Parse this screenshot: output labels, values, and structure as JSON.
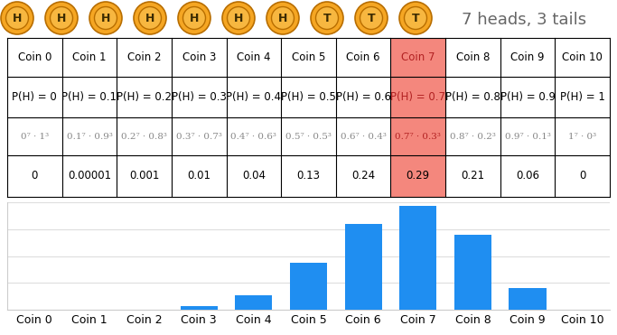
{
  "coins": [
    "H",
    "H",
    "H",
    "H",
    "H",
    "H",
    "H",
    "T",
    "T",
    "T"
  ],
  "summary": "7 heads, 3 tails",
  "table": {
    "rows": [
      [
        "Coin 0",
        "Coin 1",
        "Coin 2",
        "Coin 3",
        "Coin 4",
        "Coin 5",
        "Coin 6",
        "Coin 7",
        "Coin 8",
        "Coin 9",
        "Coin 10"
      ],
      [
        "P(H) = 0",
        "P(H) = 0.1",
        "P(H) = 0.2",
        "P(H) = 0.3",
        "P(H) = 0.4",
        "P(H) = 0.5",
        "P(H) = 0.6",
        "P(H) = 0.7",
        "P(H) = 0.8",
        "P(H) = 0.9",
        "P(H) = 1"
      ],
      [
        "0⁷ · 1³",
        "0.1⁷ · 0.9³",
        "0.2⁷ · 0.8³",
        "0.3⁷ · 0.7³",
        "0.4⁷ · 0.6³",
        "0.5⁷ · 0.5³",
        "0.6⁷ · 0.4³",
        "0.7⁷ · 0.3³",
        "0.8⁷ · 0.2³",
        "0.9⁷ · 0.1³",
        "1⁷ · 0³"
      ],
      [
        "0",
        "0.00001",
        "0.001",
        "0.01",
        "0.04",
        "0.13",
        "0.24",
        "0.29",
        "0.21",
        "0.06",
        "0"
      ]
    ],
    "highlight": "Coin 7",
    "highlight_color": "#f4877d"
  },
  "chart_data": {
    "type": "bar",
    "categories": [
      "Coin 0",
      "Coin 1",
      "Coin 2",
      "Coin 3",
      "Coin 4",
      "Coin 5",
      "Coin 6",
      "Coin 7",
      "Coin 8",
      "Coin 9",
      "Coin 10"
    ],
    "values": [
      0,
      1e-05,
      0.001,
      0.01,
      0.04,
      0.13,
      0.24,
      0.29,
      0.21,
      0.06,
      0
    ],
    "color": "#1f8ef1",
    "ylim": [
      0,
      0.3
    ],
    "yticks": [
      0,
      0.075,
      0.15,
      0.225,
      0.3
    ],
    "grid": true,
    "tick_labels": "x"
  }
}
